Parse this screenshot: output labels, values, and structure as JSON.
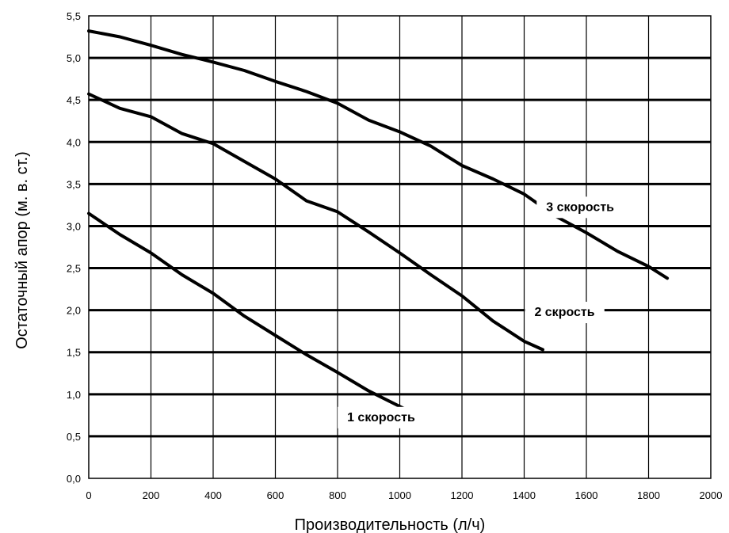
{
  "chart_data": {
    "type": "line",
    "xlabel": "Производительность (л/ч)",
    "ylabel": "Остаточный апор (м. в. ст.)",
    "xlim": [
      0,
      2000
    ],
    "ylim": [
      0,
      5.5
    ],
    "xticks": [
      0,
      200,
      400,
      600,
      800,
      1000,
      1200,
      1400,
      1600,
      1800,
      2000
    ],
    "xtick_labels": [
      "0",
      "200",
      "400",
      "600",
      "800",
      "1000",
      "1200",
      "1400",
      "1600",
      "1800",
      "2000"
    ],
    "yticks": [
      0,
      0.5,
      1,
      1.5,
      2,
      2.5,
      3,
      3.5,
      4,
      4.5,
      5,
      5.5
    ],
    "ytick_labels": [
      "0,0",
      "0,5",
      "1,0",
      "1,5",
      "2,0",
      "2,5",
      "3,0",
      "3,5",
      "4,0",
      "4,5",
      "5,0",
      "5,5"
    ],
    "grid": true,
    "series": [
      {
        "name": "1 скорость",
        "x": [
          0,
          100,
          200,
          300,
          400,
          500,
          600,
          700,
          800,
          900,
          1030
        ],
        "y": [
          3.15,
          2.9,
          2.68,
          2.42,
          2.2,
          1.93,
          1.7,
          1.47,
          1.26,
          1.04,
          0.8
        ],
        "label_at": [
          940,
          0.72
        ]
      },
      {
        "name": "2 скрость",
        "x": [
          0,
          100,
          200,
          300,
          400,
          500,
          600,
          700,
          800,
          900,
          1000,
          1100,
          1200,
          1300,
          1400,
          1460
        ],
        "y": [
          4.57,
          4.4,
          4.3,
          4.1,
          3.98,
          3.77,
          3.56,
          3.3,
          3.17,
          2.93,
          2.68,
          2.42,
          2.17,
          1.87,
          1.63,
          1.53
        ],
        "label_at": [
          1530,
          1.97
        ]
      },
      {
        "name": "3 скорость",
        "x": [
          0,
          100,
          200,
          300,
          400,
          500,
          600,
          700,
          800,
          900,
          1000,
          1100,
          1200,
          1300,
          1400,
          1500,
          1600,
          1700,
          1800,
          1860
        ],
        "y": [
          5.32,
          5.25,
          5.15,
          5.04,
          4.95,
          4.85,
          4.72,
          4.6,
          4.46,
          4.26,
          4.12,
          3.95,
          3.72,
          3.56,
          3.38,
          3.12,
          2.92,
          2.7,
          2.52,
          2.38
        ],
        "label_at": [
          1580,
          3.22
        ]
      }
    ]
  }
}
